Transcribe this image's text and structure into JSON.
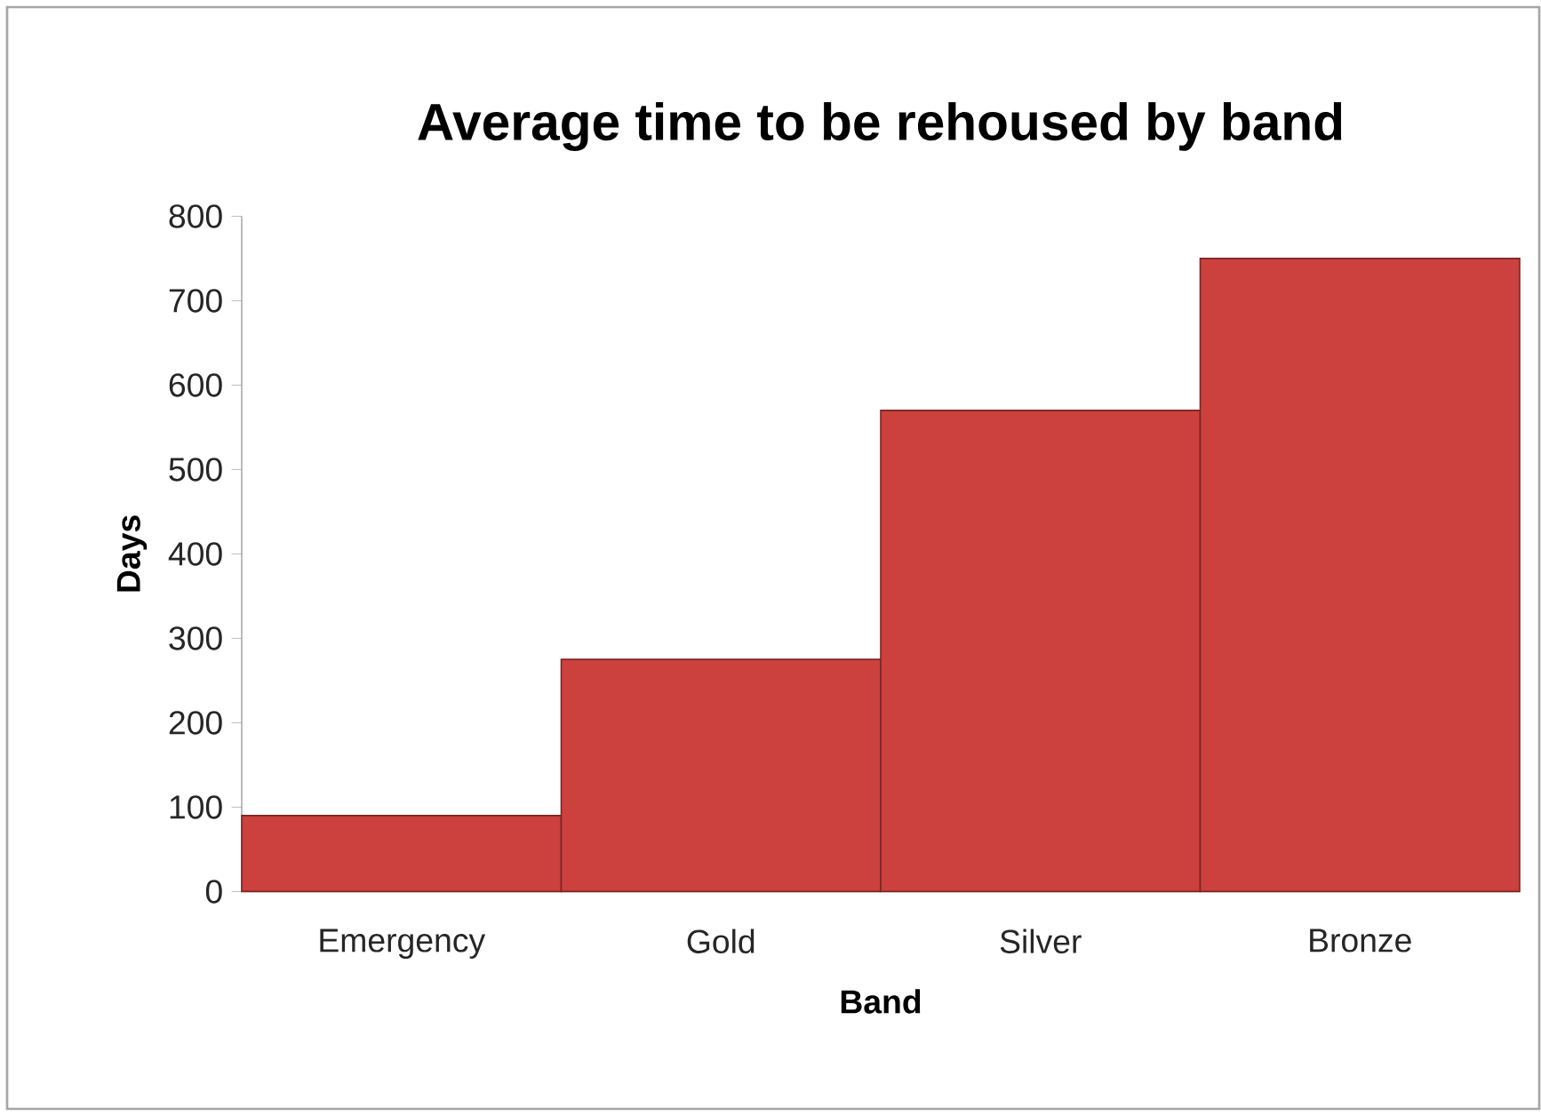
{
  "chart_data": {
    "type": "bar",
    "title": "Average time to be rehoused by band",
    "xlabel": "Band",
    "ylabel": "Days",
    "categories": [
      "Emergency",
      "Gold",
      "Silver",
      "Bronze"
    ],
    "values": [
      90,
      275,
      570,
      750
    ],
    "color": "#cc403d",
    "ylim": [
      0,
      800
    ],
    "yticks": [
      0,
      100,
      200,
      300,
      400,
      500,
      600,
      700,
      800
    ],
    "grid": false
  }
}
